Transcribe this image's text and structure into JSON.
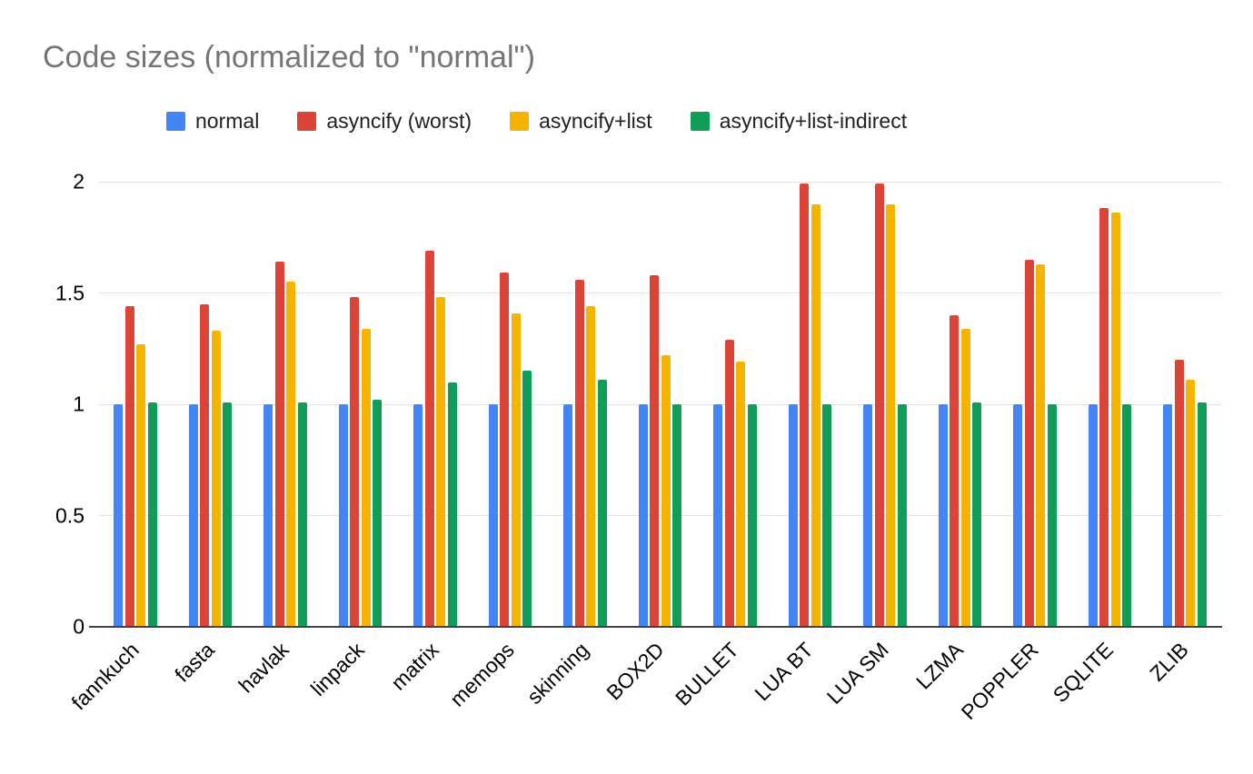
{
  "chart_data": {
    "type": "bar",
    "title": "Code sizes (normalized to \"normal\")",
    "categories": [
      "fannkuch",
      "fasta",
      "havlak",
      "linpack",
      "matrix",
      "memops",
      "skinning",
      "BOX2D",
      "BULLET",
      "LUA BT",
      "LUA SM",
      "LZMA",
      "POPPLER",
      "SQLITE",
      "ZLIB"
    ],
    "series": [
      {
        "name": "normal",
        "color": "#4285f4",
        "values": [
          1.0,
          1.0,
          1.0,
          1.0,
          1.0,
          1.0,
          1.0,
          1.0,
          1.0,
          1.0,
          1.0,
          1.0,
          1.0,
          1.0,
          1.0
        ]
      },
      {
        "name": "asyncify (worst)",
        "color": "#db4437",
        "values": [
          1.44,
          1.45,
          1.64,
          1.48,
          1.69,
          1.59,
          1.56,
          1.58,
          1.29,
          1.99,
          1.99,
          1.4,
          1.65,
          1.88,
          1.2
        ]
      },
      {
        "name": "asyncify+list",
        "color": "#f4b400",
        "values": [
          1.27,
          1.33,
          1.55,
          1.34,
          1.48,
          1.41,
          1.44,
          1.22,
          1.19,
          1.9,
          1.9,
          1.34,
          1.63,
          1.86,
          1.11
        ]
      },
      {
        "name": "asyncify+list-indirect",
        "color": "#0f9d58",
        "values": [
          1.01,
          1.01,
          1.01,
          1.02,
          1.1,
          1.15,
          1.11,
          1.0,
          1.0,
          1.0,
          1.0,
          1.01,
          1.0,
          1.0,
          1.01
        ]
      }
    ],
    "ylim": [
      0,
      2
    ],
    "yticks": [
      0,
      0.5,
      1,
      1.5,
      2
    ],
    "grid": true,
    "legend_position": "top",
    "background_color": "#ffffff",
    "title_color": "#757575"
  }
}
